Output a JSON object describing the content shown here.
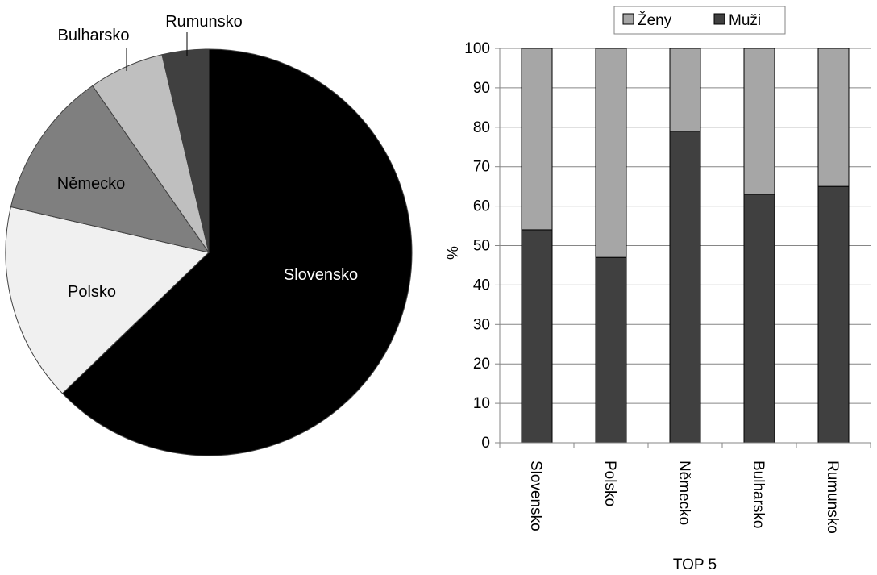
{
  "chart_data": [
    {
      "type": "pie",
      "categories": [
        "Slovensko",
        "Polsko",
        "Německo",
        "Bulharsko",
        "Rumunsko"
      ],
      "values": [
        62.8,
        15.8,
        11.7,
        6.0,
        3.7
      ],
      "colors": [
        "#000000",
        "#f0f0f0",
        "#7f7f7f",
        "#bfbfbf",
        "#404040"
      ],
      "label_colors": [
        "#ffffff",
        "#000000",
        "#000000",
        "#000000",
        "#000000"
      ],
      "labels": [
        "Slovensko",
        "Polsko",
        "Německo",
        "Bulharsko",
        "Rumunsko"
      ]
    },
    {
      "type": "bar",
      "stacked": true,
      "categories": [
        "Slovensko",
        "Polsko",
        "Německo",
        "Bulharsko",
        "Rumunsko"
      ],
      "series": [
        {
          "name": "Muži",
          "values": [
            54,
            47,
            79,
            63,
            65
          ],
          "color": "#404040"
        },
        {
          "name": "Ženy",
          "values": [
            46,
            53,
            21,
            37,
            35
          ],
          "color": "#a6a6a6"
        }
      ],
      "xlabel": "TOP 5",
      "ylabel": "%",
      "ylim": [
        0,
        100
      ],
      "yticks": [
        0,
        10,
        20,
        30,
        40,
        50,
        60,
        70,
        80,
        90,
        100
      ],
      "grid": true,
      "legend": {
        "position": "top",
        "entries": [
          "Ženy",
          "Muži"
        ]
      }
    }
  ]
}
